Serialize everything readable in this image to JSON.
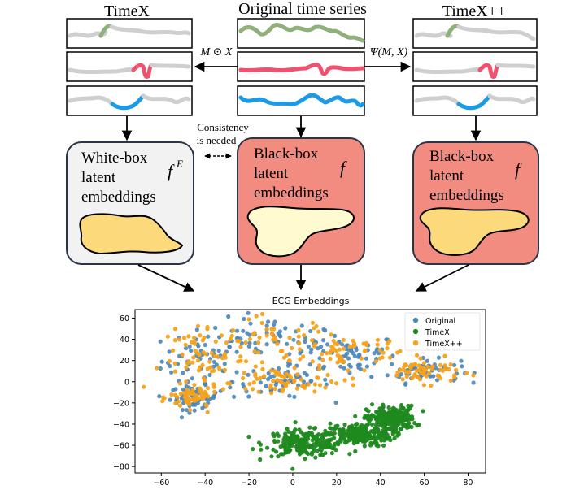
{
  "columns": {
    "timex": {
      "title": "TimeX",
      "embedding_lines": [
        "White-box",
        "latent",
        "embeddings"
      ],
      "model_symbol": "f",
      "model_superscript": "E"
    },
    "original": {
      "title": "Original time series",
      "embedding_lines": [
        "Black-box",
        "latent",
        "embeddings"
      ],
      "model_symbol": "f"
    },
    "timexpp": {
      "title": "TimeX++",
      "embedding_lines": [
        "Black-box",
        "latent",
        "embeddings"
      ],
      "model_symbol": "f"
    }
  },
  "arrows": {
    "left_label": "M ⊙ X",
    "right_label": "Ψ(M, X)"
  },
  "consistency": {
    "lines": [
      "Consistency",
      "is needed"
    ]
  },
  "colors": {
    "green_series": "#8fb07a",
    "red_series": "#f0516f",
    "blue_series": "#1b9be6",
    "gray_series": "#cfcfcf",
    "whitebox_fill": "#f2f2f2",
    "blackbox_fill": "#f28c80",
    "box_stroke": "#2a3548",
    "blob_fill_light": "#fffad0",
    "blob_fill_dark": "#fcd97a",
    "scatter_original": "#4a86b8",
    "scatter_timex": "#1f8a1f",
    "scatter_timexpp": "#f7a21a"
  },
  "chart_data": {
    "type": "scatter",
    "title": "ECG Embeddings",
    "xlabel": "",
    "ylabel": "",
    "xlim": [
      -72,
      88
    ],
    "ylim": [
      -86,
      68
    ],
    "xticks": [
      -60,
      -40,
      -20,
      0,
      20,
      40,
      60,
      80
    ],
    "yticks": [
      60,
      40,
      20,
      0,
      -20,
      -40,
      -60,
      -80
    ],
    "grid": false,
    "legend_position": "top-right",
    "series": [
      {
        "name": "Original",
        "cluster_regions": [
          {
            "center": [
              -40,
              20
            ],
            "spread": [
              18,
              26
            ]
          },
          {
            "center": [
              -10,
              40
            ],
            "spread": [
              30,
              18
            ]
          },
          {
            "center": [
              25,
              25
            ],
            "spread": [
              22,
              18
            ]
          },
          {
            "center": [
              60,
              10
            ],
            "spread": [
              15,
              10
            ]
          },
          {
            "center": [
              -45,
              -15
            ],
            "spread": [
              10,
              10
            ]
          },
          {
            "center": [
              -5,
              0
            ],
            "spread": [
              20,
              14
            ]
          }
        ]
      },
      {
        "name": "TimeX",
        "cluster_regions": [
          {
            "center": [
              5,
              -58
            ],
            "spread": [
              16,
              11
            ]
          },
          {
            "center": [
              30,
              -50
            ],
            "spread": [
              14,
              10
            ]
          },
          {
            "center": [
              45,
              -35
            ],
            "spread": [
              10,
              11
            ]
          }
        ]
      },
      {
        "name": "TimeX++",
        "cluster_regions": [
          {
            "center": [
              -40,
              20
            ],
            "spread": [
              18,
              26
            ]
          },
          {
            "center": [
              -10,
              40
            ],
            "spread": [
              30,
              18
            ]
          },
          {
            "center": [
              25,
              25
            ],
            "spread": [
              22,
              18
            ]
          },
          {
            "center": [
              60,
              10
            ],
            "spread": [
              15,
              10
            ]
          },
          {
            "center": [
              -45,
              -15
            ],
            "spread": [
              10,
              10
            ]
          },
          {
            "center": [
              -5,
              0
            ],
            "spread": [
              20,
              14
            ]
          }
        ]
      }
    ]
  }
}
